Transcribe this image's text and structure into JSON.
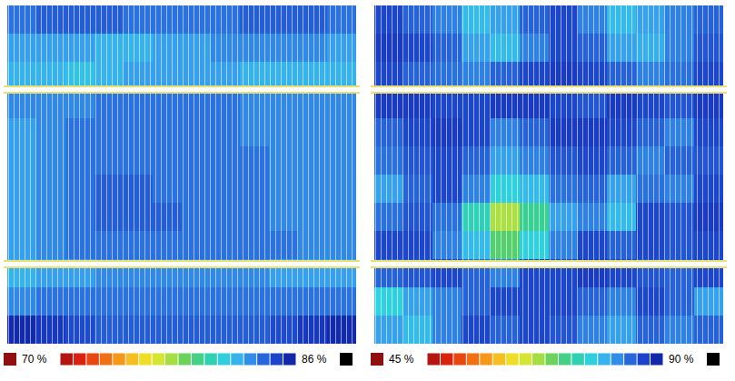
{
  "chart_data": [
    {
      "type": "heatmap",
      "tick_labels": false,
      "cells": [
        [
          83.5,
          84,
          84,
          84,
          83.5,
          83.5,
          83.5,
          83.5,
          84,
          84,
          84,
          83.5
        ],
        [
          82.5,
          82.5,
          82.5,
          82,
          82,
          82.5,
          82.5,
          83,
          83,
          83,
          83,
          82.5
        ],
        [
          82,
          82,
          81.5,
          82,
          82.5,
          82.5,
          82.5,
          82.5,
          82,
          82,
          82,
          82
        ],
        [
          83,
          83,
          83,
          83.5,
          83.5,
          83.5,
          83.5,
          83.5,
          83,
          83,
          83,
          83
        ],
        [
          82.5,
          83,
          83.5,
          83.5,
          83.5,
          83.5,
          83.5,
          83.5,
          83,
          83,
          83,
          83
        ],
        [
          82.5,
          83,
          83.5,
          83.5,
          83.5,
          83.5,
          83.5,
          83.5,
          83.5,
          83,
          83,
          83
        ],
        [
          82.5,
          83,
          83.5,
          84,
          84,
          83.5,
          83.5,
          83.5,
          83.5,
          83,
          83,
          83
        ],
        [
          82.5,
          83,
          83.5,
          84,
          84,
          84,
          83.5,
          83.5,
          83.5,
          83,
          83,
          83
        ],
        [
          82.5,
          83,
          83.5,
          83.5,
          83.5,
          83.5,
          83.5,
          83.5,
          83.5,
          83.5,
          83,
          83
        ],
        [
          82,
          82.5,
          82.5,
          83,
          83,
          83,
          83,
          83,
          83,
          82.5,
          82.5,
          82.5
        ],
        [
          83,
          83.5,
          83.5,
          83.5,
          83.5,
          83.5,
          83.5,
          83.5,
          83.5,
          83.5,
          83.5,
          83.5
        ],
        [
          85.5,
          85,
          84.5,
          84,
          84,
          84,
          84,
          84,
          84,
          84.5,
          85,
          85.5
        ]
      ],
      "colorbar": {
        "range": [
          70,
          86
        ],
        "ticks": [
          {
            "value": 70,
            "label": "70 %"
          },
          {
            "value": 86,
            "label": "86 %"
          }
        ]
      }
    },
    {
      "type": "heatmap",
      "tick_labels": false,
      "cells": [
        [
          86,
          84,
          82,
          78,
          80,
          84,
          86,
          82,
          78,
          80,
          82,
          84
        ],
        [
          87,
          86,
          84,
          80,
          78,
          82,
          86,
          84,
          80,
          79,
          82,
          85
        ],
        [
          86,
          84,
          83,
          82,
          84,
          86,
          87,
          86,
          84,
          82,
          83,
          86
        ],
        [
          87,
          87,
          86,
          86,
          87,
          87,
          86,
          85,
          87,
          86,
          85,
          87
        ],
        [
          84,
          86,
          87,
          86,
          82,
          84,
          87,
          87,
          86,
          84,
          82,
          86
        ],
        [
          83,
          85,
          86,
          84,
          80,
          82,
          85,
          86,
          84,
          82,
          84,
          85
        ],
        [
          80,
          84,
          86,
          82,
          76,
          78,
          83,
          84,
          80,
          83,
          82,
          86
        ],
        [
          83,
          85,
          83,
          74,
          66,
          72,
          80,
          82,
          78,
          86,
          85,
          87
        ],
        [
          86,
          86,
          82,
          78,
          70,
          76,
          82,
          86,
          84,
          86,
          85,
          86
        ],
        [
          84,
          85,
          86,
          84,
          82,
          86,
          86,
          87,
          86,
          85,
          84,
          86
        ],
        [
          76,
          80,
          82,
          84,
          86,
          86,
          86,
          84,
          82,
          86,
          84,
          80
        ],
        [
          80,
          78,
          82,
          86,
          84,
          86,
          85,
          82,
          80,
          84,
          82,
          84
        ]
      ],
      "colorbar": {
        "range": [
          45,
          90
        ],
        "ticks": [
          {
            "value": 45,
            "label": "45 %"
          },
          {
            "value": 90,
            "label": "90 %"
          }
        ]
      }
    }
  ]
}
